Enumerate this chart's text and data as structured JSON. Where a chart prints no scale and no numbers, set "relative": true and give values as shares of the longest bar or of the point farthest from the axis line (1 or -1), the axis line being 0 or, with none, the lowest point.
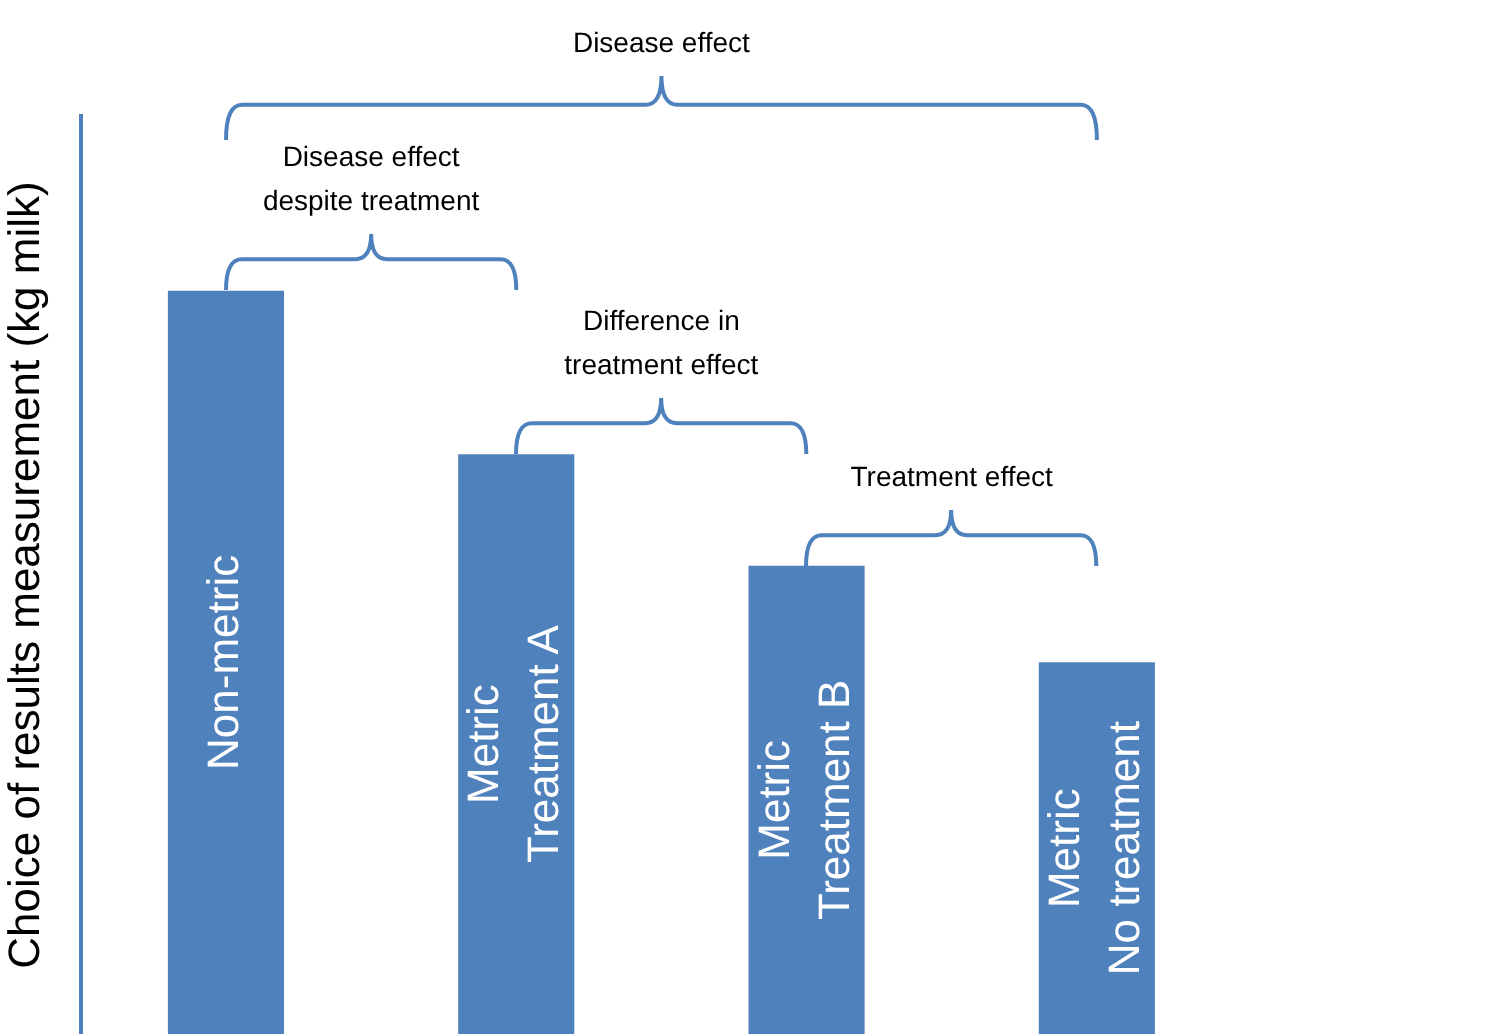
{
  "chart_data": {
    "type": "bar",
    "relative": true,
    "ylabel": "Choice of results measurement (kg milk)",
    "categories": [
      "Non-metric",
      "Metric Treatment A",
      "Metric Treatment B",
      "Metric No treatment"
    ],
    "values": [
      1,
      0.78,
      0.63,
      0.5
    ],
    "color": "#4f81bd",
    "grid": false,
    "legend": false,
    "annotations": [
      "Disease effect",
      "Disease effect despite treatment",
      "Difference in treatment effect",
      "Treatment effect"
    ]
  }
}
